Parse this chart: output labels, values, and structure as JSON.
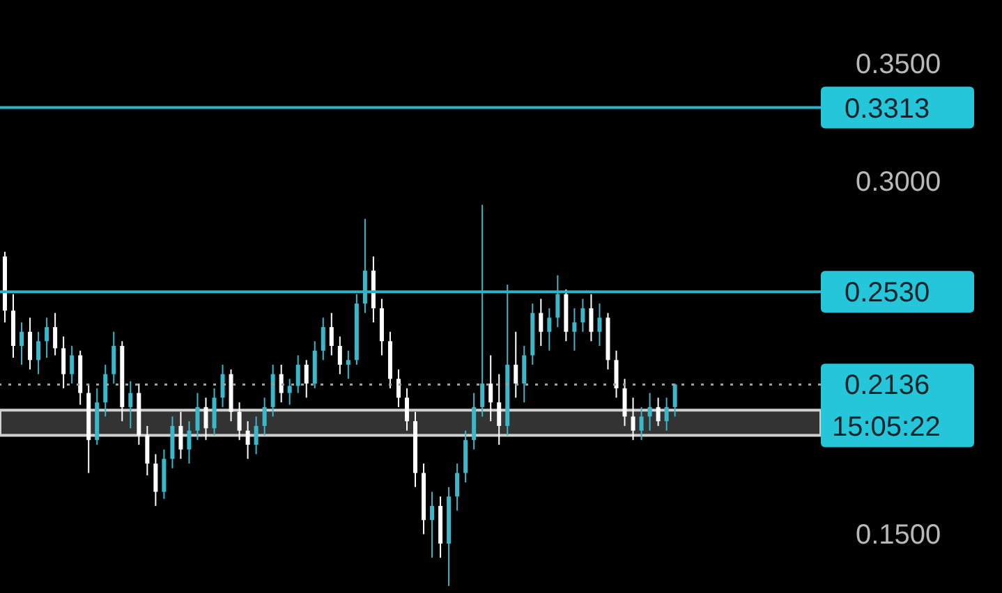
{
  "chart_data": {
    "type": "candlestick",
    "categories": [
      null,
      null,
      null,
      null,
      null,
      null,
      null,
      null,
      null,
      null,
      null,
      null,
      null,
      null,
      null,
      null,
      null,
      null,
      null,
      null,
      null,
      null,
      null,
      null,
      null,
      null,
      null,
      null,
      null,
      null,
      null,
      null,
      null,
      null,
      null,
      null,
      null,
      null,
      null,
      null,
      null,
      null,
      null,
      null,
      null,
      null,
      null,
      null,
      null,
      null,
      null,
      null,
      null,
      null,
      null,
      null,
      null,
      null,
      null,
      null,
      null,
      null,
      null,
      null,
      null,
      null,
      null,
      null,
      null,
      null,
      null,
      null,
      null,
      null,
      null,
      null,
      null,
      null,
      null,
      null,
      null,
      null,
      null,
      null,
      null,
      null,
      null,
      null,
      null,
      null,
      null,
      null,
      null,
      null,
      null,
      null,
      null,
      null
    ],
    "ohlc": [
      [
        0.268,
        0.27,
        0.24,
        0.245
      ],
      [
        0.245,
        0.252,
        0.225,
        0.23
      ],
      [
        0.23,
        0.24,
        0.222,
        0.236
      ],
      [
        0.236,
        0.242,
        0.22,
        0.224
      ],
      [
        0.224,
        0.236,
        0.218,
        0.232
      ],
      [
        0.232,
        0.242,
        0.225,
        0.238
      ],
      [
        0.238,
        0.244,
        0.226,
        0.229
      ],
      [
        0.229,
        0.234,
        0.212,
        0.218
      ],
      [
        0.218,
        0.23,
        0.214,
        0.226
      ],
      [
        0.226,
        0.228,
        0.205,
        0.21
      ],
      [
        0.21,
        0.214,
        0.176,
        0.19
      ],
      [
        0.19,
        0.212,
        0.188,
        0.206
      ],
      [
        0.206,
        0.222,
        0.2,
        0.218
      ],
      [
        0.218,
        0.236,
        0.214,
        0.23
      ],
      [
        0.23,
        0.232,
        0.198,
        0.204
      ],
      [
        0.204,
        0.215,
        0.195,
        0.21
      ],
      [
        0.21,
        0.214,
        0.188,
        0.192
      ],
      [
        0.192,
        0.196,
        0.175,
        0.18
      ],
      [
        0.18,
        0.184,
        0.162,
        0.168
      ],
      [
        0.168,
        0.186,
        0.165,
        0.182
      ],
      [
        0.182,
        0.2,
        0.178,
        0.196
      ],
      [
        0.196,
        0.202,
        0.182,
        0.186
      ],
      [
        0.186,
        0.198,
        0.18,
        0.194
      ],
      [
        0.194,
        0.21,
        0.19,
        0.204
      ],
      [
        0.204,
        0.208,
        0.19,
        0.195
      ],
      [
        0.195,
        0.212,
        0.192,
        0.208
      ],
      [
        0.208,
        0.222,
        0.204,
        0.218
      ],
      [
        0.218,
        0.22,
        0.198,
        0.202
      ],
      [
        0.202,
        0.206,
        0.19,
        0.194
      ],
      [
        0.194,
        0.198,
        0.182,
        0.188
      ],
      [
        0.188,
        0.2,
        0.184,
        0.196
      ],
      [
        0.196,
        0.208,
        0.192,
        0.204
      ],
      [
        0.204,
        0.222,
        0.2,
        0.218
      ],
      [
        0.218,
        0.222,
        0.206,
        0.21
      ],
      [
        0.21,
        0.216,
        0.205,
        0.213
      ],
      [
        0.213,
        0.226,
        0.21,
        0.222
      ],
      [
        0.222,
        0.224,
        0.208,
        0.214
      ],
      [
        0.214,
        0.232,
        0.212,
        0.228
      ],
      [
        0.228,
        0.242,
        0.224,
        0.238
      ],
      [
        0.238,
        0.244,
        0.226,
        0.23
      ],
      [
        0.23,
        0.234,
        0.218,
        0.222
      ],
      [
        0.222,
        0.228,
        0.216,
        0.224
      ],
      [
        0.224,
        0.252,
        0.222,
        0.248
      ],
      [
        0.248,
        0.284,
        0.244,
        0.262
      ],
      [
        0.262,
        0.268,
        0.24,
        0.246
      ],
      [
        0.246,
        0.25,
        0.226,
        0.232
      ],
      [
        0.232,
        0.236,
        0.212,
        0.216
      ],
      [
        0.216,
        0.22,
        0.204,
        0.208
      ],
      [
        0.208,
        0.212,
        0.194,
        0.198
      ],
      [
        0.198,
        0.202,
        0.17,
        0.176
      ],
      [
        0.176,
        0.18,
        0.15,
        0.156
      ],
      [
        0.156,
        0.168,
        0.14,
        0.162
      ],
      [
        0.162,
        0.166,
        0.14,
        0.146
      ],
      [
        0.146,
        0.17,
        0.128,
        0.166
      ],
      [
        0.166,
        0.18,
        0.16,
        0.176
      ],
      [
        0.176,
        0.194,
        0.172,
        0.19
      ],
      [
        0.19,
        0.21,
        0.186,
        0.204
      ],
      [
        0.204,
        0.29,
        0.2,
        0.214
      ],
      [
        0.214,
        0.226,
        0.198,
        0.206
      ],
      [
        0.206,
        0.218,
        0.188,
        0.196
      ],
      [
        0.196,
        0.256,
        0.192,
        0.222
      ],
      [
        0.222,
        0.236,
        0.208,
        0.214
      ],
      [
        0.214,
        0.23,
        0.206,
        0.226
      ],
      [
        0.226,
        0.248,
        0.222,
        0.244
      ],
      [
        0.244,
        0.25,
        0.23,
        0.236
      ],
      [
        0.236,
        0.246,
        0.228,
        0.242
      ],
      [
        0.242,
        0.26,
        0.238,
        0.252
      ],
      [
        0.252,
        0.254,
        0.232,
        0.236
      ],
      [
        0.236,
        0.246,
        0.228,
        0.24
      ],
      [
        0.24,
        0.25,
        0.236,
        0.246
      ],
      [
        0.246,
        0.252,
        0.232,
        0.236
      ],
      [
        0.236,
        0.248,
        0.23,
        0.242
      ],
      [
        0.242,
        0.244,
        0.22,
        0.224
      ],
      [
        0.224,
        0.228,
        0.208,
        0.212
      ],
      [
        0.212,
        0.216,
        0.196,
        0.2
      ],
      [
        0.2,
        0.208,
        0.19,
        0.194
      ],
      [
        0.194,
        0.204,
        0.19,
        0.2
      ],
      [
        0.2,
        0.21,
        0.194,
        0.204
      ],
      [
        0.204,
        0.208,
        0.196,
        0.198
      ],
      [
        0.198,
        0.208,
        0.194,
        0.204
      ],
      [
        0.204,
        0.214,
        0.2,
        0.2136
      ],
      null,
      null,
      null,
      null,
      null,
      null,
      null,
      null,
      null,
      null,
      null,
      null,
      null,
      null,
      null,
      null,
      null
    ],
    "colors": [
      "#ffffff",
      "#ffffff",
      "#3ab7c8",
      "#ffffff",
      "#3ab7c8",
      "#3ab7c8",
      "#ffffff",
      "#ffffff",
      "#3ab7c8",
      "#ffffff",
      "#ffffff",
      "#3ab7c8",
      "#3ab7c8",
      "#3ab7c8",
      "#ffffff",
      "#3ab7c8",
      "#ffffff",
      "#ffffff",
      "#ffffff",
      "#3ab7c8",
      "#3ab7c8",
      "#ffffff",
      "#3ab7c8",
      "#3ab7c8",
      "#ffffff",
      "#3ab7c8",
      "#3ab7c8",
      "#ffffff",
      "#ffffff",
      "#ffffff",
      "#3ab7c8",
      "#3ab7c8",
      "#3ab7c8",
      "#ffffff",
      "#3ab7c8",
      "#3ab7c8",
      "#ffffff",
      "#3ab7c8",
      "#3ab7c8",
      "#ffffff",
      "#ffffff",
      "#3ab7c8",
      "#3ab7c8",
      "#3ab7c8",
      "#ffffff",
      "#ffffff",
      "#ffffff",
      "#ffffff",
      "#ffffff",
      "#ffffff",
      "#ffffff",
      "#3ab7c8",
      "#ffffff",
      "#3ab7c8",
      "#3ab7c8",
      "#3ab7c8",
      "#3ab7c8",
      "#3ab7c8",
      "#ffffff",
      "#ffffff",
      "#3ab7c8",
      "#ffffff",
      "#3ab7c8",
      "#3ab7c8",
      "#ffffff",
      "#3ab7c8",
      "#3ab7c8",
      "#ffffff",
      "#3ab7c8",
      "#3ab7c8",
      "#ffffff",
      "#3ab7c8",
      "#ffffff",
      "#ffffff",
      "#ffffff",
      "#ffffff",
      "#3ab7c8",
      "#3ab7c8",
      "#ffffff",
      "#3ab7c8",
      "#3ab7c8",
      null,
      null,
      null,
      null,
      null,
      null,
      null,
      null,
      null,
      null,
      null,
      null,
      null,
      null,
      null,
      null,
      null
    ],
    "ylim": [
      0.125,
      0.377
    ],
    "yticks": [
      {
        "value": 0.35,
        "label": "0.3500"
      },
      {
        "value": 0.3,
        "label": "0.3000"
      },
      {
        "value": 0.15,
        "label": "0.1500"
      }
    ],
    "tick_labels": "y",
    "ref_lines": [
      {
        "axis": "y",
        "value": 0.3313,
        "label": "0.3313",
        "color": "#2bb3c8",
        "line_style": "solid"
      },
      {
        "axis": "y",
        "value": 0.253,
        "label": "0.2530",
        "color": "#2bb3c8",
        "line_style": "solid"
      },
      {
        "axis": "y",
        "value": 0.2136,
        "label": "0.2136",
        "color": "#9e9e9e",
        "line_style": "dotted"
      }
    ],
    "bands": [
      {
        "axis": "y",
        "from": 0.192,
        "to": 0.2027,
        "color": "#333333"
      }
    ],
    "annotations": [
      "15:05:22"
    ]
  }
}
